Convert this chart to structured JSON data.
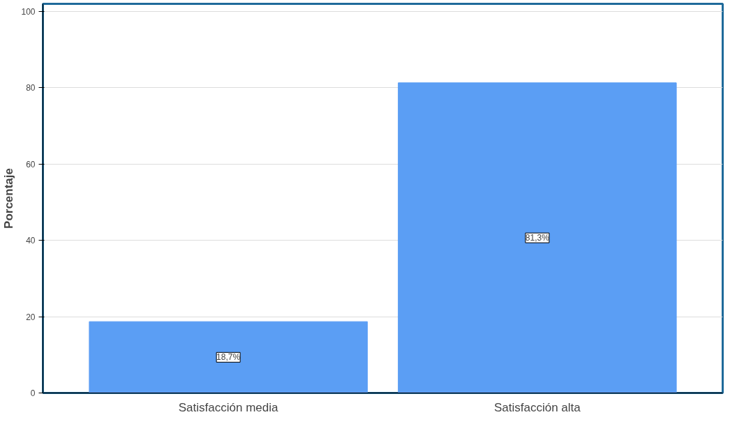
{
  "chart_data": {
    "type": "bar",
    "ylabel": "Porcentaje",
    "categories": [
      "Satisfacción media",
      "Satisfacción alta"
    ],
    "values": [
      18.7,
      81.3
    ],
    "color": "#5b9ef4",
    "value_labels": [
      "18,7%",
      "81,3%"
    ],
    "ylim": [
      0,
      102
    ],
    "yticks": [
      0,
      20,
      40,
      60,
      80,
      100
    ],
    "grid": "y"
  }
}
